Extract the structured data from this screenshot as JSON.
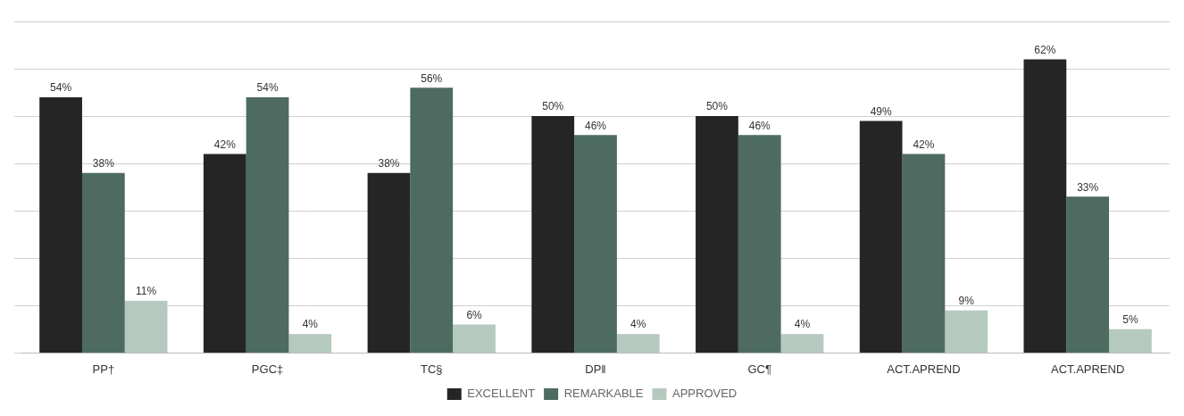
{
  "chart_data": {
    "type": "bar",
    "categories": [
      "PP†",
      "PGC‡",
      "TC§",
      "DP‖",
      "GC¶",
      "ACT.APREND",
      "ACT.APREND"
    ],
    "series": [
      {
        "name": "EXCELLENT",
        "color": "#252525",
        "values": [
          54,
          42,
          38,
          50,
          50,
          49,
          62
        ],
        "value_labels": [
          "54%",
          "42%",
          "38%",
          "50%",
          "50%",
          "49%",
          "62%"
        ]
      },
      {
        "name": "REMARKABLE",
        "color": "#4d6b61",
        "values": [
          38,
          54,
          56,
          46,
          46,
          42,
          33
        ],
        "value_labels": [
          "38%",
          "54%",
          "56%",
          "46%",
          "46%",
          "42%",
          "33%"
        ]
      },
      {
        "name": "APPROVED",
        "color": "#b5c9bf",
        "values": [
          11,
          4,
          6,
          4,
          4,
          9,
          5
        ],
        "value_labels": [
          "11%",
          "4%",
          "6%",
          "4%",
          "4%",
          "9%",
          "5%"
        ]
      }
    ],
    "ylim": [
      0,
      70
    ],
    "yticks": [
      0,
      10,
      20,
      30,
      40,
      50,
      60,
      70
    ],
    "grid": true,
    "legend": "bottom",
    "data_labels": true,
    "tick_labels": "x"
  }
}
